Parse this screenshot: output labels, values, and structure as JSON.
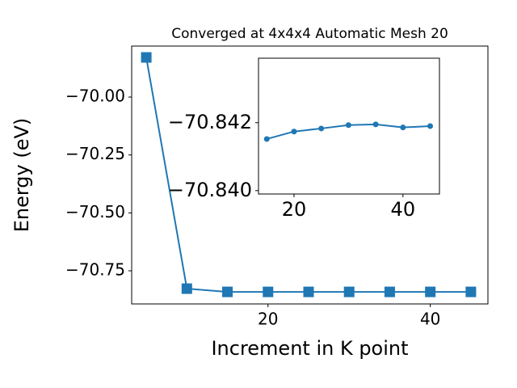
{
  "chart_data": [
    {
      "type": "line",
      "title": "Converged at 4x4x4 Automatic Mesh 20",
      "x_label": "Increment in K point",
      "y_label": "Energy (eV)",
      "x": [
        5,
        10,
        15,
        20,
        25,
        30,
        35,
        40,
        45
      ],
      "series": [
        {
          "color": "#1f77b4",
          "marker": "square",
          "values": [
            -69.829,
            -70.827,
            -70.841,
            -70.841,
            -70.841,
            -70.841,
            -70.841,
            -70.841,
            -70.841
          ]
        }
      ],
      "xlim": [
        3.2,
        47.1
      ],
      "ylim": [
        -70.893,
        -69.78
      ],
      "xticks": [
        20,
        40
      ],
      "yticks": [
        {
          "value": -70.0,
          "label": "−70.00"
        },
        {
          "value": -70.25,
          "label": "−70.25"
        },
        {
          "value": -70.5,
          "label": "−70.50"
        },
        {
          "value": -70.75,
          "label": "−70.75"
        }
      ],
      "grid": false
    },
    {
      "type": "line",
      "x": [
        15,
        20,
        25,
        30,
        35,
        40,
        45
      ],
      "series": [
        {
          "color": "#1f77b4",
          "marker": "circle",
          "values": [
            -70.84152,
            -70.84174,
            -70.84183,
            -70.84193,
            -70.84195,
            -70.84186,
            -70.8419
          ]
        }
      ],
      "xlim": [
        13.48,
        46.7
      ],
      "ylim": [
        -70.8399,
        -70.8439
      ],
      "xticks": [
        20,
        40
      ],
      "yticks": [
        {
          "value": -70.842,
          "label": "−70.842"
        },
        {
          "value": -70.84,
          "label": "−70.840"
        }
      ],
      "grid": false
    }
  ]
}
